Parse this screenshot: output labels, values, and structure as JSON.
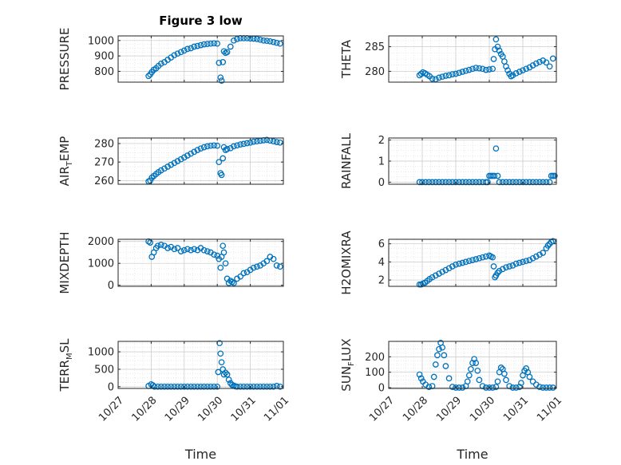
{
  "chart_data": [
    {
      "type": "scatter",
      "title": "Figure 3 low",
      "ylabel": "PRESSURE",
      "xlabel": "",
      "xlim": [
        0,
        5
      ],
      "ylim": [
        730,
        1030
      ],
      "yticks": [
        800,
        900,
        1000
      ],
      "xticklabels": [],
      "grid": true,
      "color": "#0072BD",
      "x": [
        0.92,
        0.97,
        1.02,
        1.08,
        1.15,
        1.22,
        1.3,
        1.4,
        1.5,
        1.6,
        1.7,
        1.8,
        1.9,
        2.0,
        2.1,
        2.2,
        2.3,
        2.4,
        2.5,
        2.6,
        2.7,
        2.8,
        2.9,
        3.0,
        3.05,
        3.1,
        3.13,
        3.17,
        3.2,
        3.25,
        3.3,
        3.4,
        3.5,
        3.6,
        3.7,
        3.8,
        3.9,
        4.0,
        4.1,
        4.2,
        4.3,
        4.4,
        4.5,
        4.6,
        4.7,
        4.8,
        4.9
      ],
      "y": [
        770,
        780,
        795,
        810,
        820,
        835,
        850,
        860,
        875,
        890,
        905,
        915,
        925,
        935,
        945,
        950,
        960,
        965,
        970,
        975,
        978,
        980,
        982,
        980,
        855,
        760,
        740,
        860,
        930,
        920,
        925,
        960,
        1000,
        1010,
        1015,
        1015,
        1015,
        1013,
        1012,
        1010,
        1005,
        1000,
        998,
        995,
        990,
        985,
        980
      ]
    },
    {
      "type": "scatter",
      "title": "",
      "ylabel": "THETA",
      "xlabel": "",
      "xlim": [
        0,
        5
      ],
      "ylim": [
        277.8,
        287.2
      ],
      "yticks": [
        280,
        285
      ],
      "xticklabels": [],
      "grid": true,
      "color": "#0072BD",
      "x": [
        0.92,
        0.97,
        1.02,
        1.08,
        1.15,
        1.22,
        1.3,
        1.4,
        1.5,
        1.6,
        1.7,
        1.8,
        1.9,
        2.0,
        2.1,
        2.2,
        2.3,
        2.4,
        2.5,
        2.6,
        2.7,
        2.8,
        2.9,
        3.0,
        3.1,
        3.13,
        3.17,
        3.2,
        3.25,
        3.3,
        3.35,
        3.4,
        3.45,
        3.5,
        3.55,
        3.6,
        3.65,
        3.7,
        3.8,
        3.9,
        4.0,
        4.1,
        4.2,
        4.3,
        4.4,
        4.5,
        4.6,
        4.7,
        4.8,
        4.9
      ],
      "y": [
        279.2,
        279.5,
        279.8,
        279.6,
        279.3,
        279.0,
        278.5,
        278.4,
        278.7,
        278.9,
        279.1,
        279.2,
        279.4,
        279.5,
        279.7,
        279.9,
        280.1,
        280.3,
        280.5,
        280.7,
        280.6,
        280.5,
        280.3,
        280.4,
        280.5,
        282.5,
        284.5,
        286.5,
        285.0,
        284.2,
        283.5,
        283.0,
        282.0,
        281.0,
        280.2,
        279.5,
        279.0,
        279.2,
        279.6,
        279.9,
        280.2,
        280.5,
        280.8,
        281.2,
        281.6,
        281.9,
        282.2,
        281.8,
        281.0,
        282.6
      ]
    },
    {
      "type": "scatter",
      "title": "",
      "ylabel": "AIR_TEMP",
      "xlabel": "",
      "xlim": [
        0,
        5
      ],
      "ylim": [
        258,
        283
      ],
      "yticks": [
        260,
        270,
        280
      ],
      "xticklabels": [],
      "grid": true,
      "color": "#0072BD",
      "x": [
        0.92,
        0.97,
        1.02,
        1.08,
        1.15,
        1.22,
        1.3,
        1.4,
        1.5,
        1.6,
        1.7,
        1.8,
        1.9,
        2.0,
        2.1,
        2.2,
        2.3,
        2.4,
        2.5,
        2.6,
        2.7,
        2.8,
        2.9,
        3.0,
        3.05,
        3.1,
        3.13,
        3.17,
        3.2,
        3.25,
        3.3,
        3.4,
        3.5,
        3.6,
        3.7,
        3.8,
        3.9,
        4.0,
        4.1,
        4.2,
        4.3,
        4.4,
        4.5,
        4.6,
        4.7,
        4.8,
        4.9
      ],
      "y": [
        259.5,
        260.0,
        261.5,
        262.5,
        263.5,
        264.5,
        265.5,
        266.5,
        267.5,
        268.5,
        269.5,
        270.5,
        271.5,
        272.5,
        273.5,
        274.5,
        275.5,
        276.5,
        277.3,
        278.0,
        278.5,
        278.8,
        279.0,
        278.8,
        270.0,
        264.0,
        263.0,
        272.0,
        278.0,
        276.5,
        277.0,
        277.5,
        278.5,
        279.0,
        279.5,
        279.8,
        280.2,
        280.5,
        281.0,
        281.2,
        281.5,
        281.8,
        282.0,
        281.6,
        281.2,
        280.8,
        280.5
      ]
    },
    {
      "type": "scatter",
      "title": "",
      "ylabel": "RAINFALL",
      "xlabel": "",
      "xlim": [
        0,
        5
      ],
      "ylim": [
        -0.1,
        2.1
      ],
      "yticks": [
        0,
        1,
        2
      ],
      "xticklabels": [],
      "grid": true,
      "color": "#0072BD",
      "x": [
        0.92,
        1.0,
        1.1,
        1.2,
        1.3,
        1.4,
        1.5,
        1.6,
        1.7,
        1.8,
        1.9,
        2.0,
        2.1,
        2.2,
        2.3,
        2.4,
        2.5,
        2.6,
        2.7,
        2.8,
        2.9,
        2.95,
        3.0,
        3.05,
        3.1,
        3.15,
        3.2,
        3.25,
        3.3,
        3.4,
        3.5,
        3.6,
        3.7,
        3.8,
        3.9,
        4.0,
        4.1,
        4.2,
        4.3,
        4.4,
        4.5,
        4.6,
        4.7,
        4.8,
        4.85,
        4.9,
        4.95
      ],
      "y": [
        0,
        0,
        0,
        0,
        0,
        0,
        0,
        0,
        0,
        0,
        0,
        0,
        0,
        0,
        0,
        0,
        0,
        0,
        0,
        0,
        0,
        0,
        0.3,
        0.3,
        0.3,
        0.3,
        1.6,
        0.3,
        0,
        0,
        0,
        0,
        0,
        0,
        0,
        0,
        0,
        0,
        0,
        0,
        0,
        0,
        0,
        0,
        0.3,
        0.3,
        0.3
      ]
    },
    {
      "type": "scatter",
      "title": "",
      "ylabel": "MIXDEPTH",
      "xlabel": "",
      "xlim": [
        0,
        5
      ],
      "ylim": [
        -50,
        2100
      ],
      "yticks": [
        0,
        1000,
        2000
      ],
      "xticklabels": [],
      "grid": true,
      "color": "#0072BD",
      "x": [
        0.92,
        0.97,
        1.02,
        1.08,
        1.15,
        1.2,
        1.3,
        1.4,
        1.5,
        1.6,
        1.7,
        1.8,
        1.9,
        2.0,
        2.1,
        2.2,
        2.3,
        2.4,
        2.5,
        2.6,
        2.7,
        2.8,
        2.9,
        3.0,
        3.05,
        3.1,
        3.13,
        3.17,
        3.2,
        3.25,
        3.3,
        3.35,
        3.4,
        3.45,
        3.5,
        3.6,
        3.7,
        3.8,
        3.9,
        4.0,
        4.1,
        4.2,
        4.3,
        4.4,
        4.5,
        4.6,
        4.7,
        4.8,
        4.9
      ],
      "y": [
        2000,
        1950,
        1300,
        1500,
        1700,
        1800,
        1850,
        1800,
        1700,
        1750,
        1650,
        1700,
        1550,
        1600,
        1650,
        1600,
        1650,
        1600,
        1700,
        1600,
        1550,
        1500,
        1400,
        1350,
        1200,
        800,
        1300,
        1800,
        1500,
        1000,
        300,
        100,
        200,
        150,
        100,
        300,
        400,
        550,
        600,
        700,
        800,
        850,
        900,
        1000,
        1100,
        1300,
        1200,
        900,
        850
      ]
    },
    {
      "type": "scatter",
      "title": "",
      "ylabel": "H2OMIXRA",
      "xlabel": "",
      "xlim": [
        0,
        5
      ],
      "ylim": [
        1.3,
        6.5
      ],
      "yticks": [
        2,
        4,
        6
      ],
      "xticklabels": [],
      "grid": true,
      "color": "#0072BD",
      "x": [
        0.92,
        0.97,
        1.02,
        1.08,
        1.15,
        1.22,
        1.3,
        1.4,
        1.5,
        1.6,
        1.7,
        1.8,
        1.9,
        2.0,
        2.1,
        2.2,
        2.3,
        2.4,
        2.5,
        2.6,
        2.7,
        2.8,
        2.9,
        3.0,
        3.05,
        3.1,
        3.13,
        3.17,
        3.2,
        3.25,
        3.3,
        3.4,
        3.5,
        3.6,
        3.7,
        3.8,
        3.9,
        4.0,
        4.1,
        4.2,
        4.3,
        4.4,
        4.5,
        4.6,
        4.7,
        4.75,
        4.8,
        4.85,
        4.9
      ],
      "y": [
        1.5,
        1.5,
        1.6,
        1.7,
        1.9,
        2.1,
        2.3,
        2.5,
        2.7,
        2.9,
        3.1,
        3.3,
        3.5,
        3.7,
        3.8,
        3.9,
        4.0,
        4.1,
        4.2,
        4.3,
        4.4,
        4.5,
        4.6,
        4.7,
        4.6,
        4.5,
        3.5,
        2.3,
        2.5,
        2.8,
        3.0,
        3.2,
        3.4,
        3.5,
        3.6,
        3.8,
        3.9,
        4.0,
        4.1,
        4.2,
        4.4,
        4.6,
        4.8,
        5.0,
        5.5,
        5.8,
        6.0,
        6.2,
        6.3
      ]
    },
    {
      "type": "scatter",
      "title": "",
      "ylabel": "TERR_MSL",
      "xlabel": "Time",
      "xlim": [
        0,
        5
      ],
      "ylim": [
        -50,
        1300
      ],
      "yticks": [
        0,
        500,
        1000
      ],
      "xticklabels": [
        "10/27",
        "10/28",
        "10/29",
        "10/30",
        "10/31",
        "11/01"
      ],
      "grid": true,
      "color": "#0072BD",
      "x": [
        0.92,
        1.0,
        1.05,
        1.1,
        1.2,
        1.3,
        1.4,
        1.5,
        1.6,
        1.7,
        1.8,
        1.9,
        2.0,
        2.1,
        2.2,
        2.3,
        2.4,
        2.5,
        2.6,
        2.7,
        2.8,
        2.9,
        3.0,
        3.03,
        3.07,
        3.1,
        3.13,
        3.17,
        3.2,
        3.25,
        3.3,
        3.35,
        3.4,
        3.45,
        3.5,
        3.55,
        3.6,
        3.7,
        3.8,
        3.9,
        4.0,
        4.1,
        4.2,
        4.3,
        4.4,
        4.5,
        4.6,
        4.7,
        4.8,
        4.9
      ],
      "y": [
        20,
        70,
        40,
        0,
        0,
        0,
        0,
        0,
        0,
        0,
        0,
        0,
        0,
        0,
        0,
        0,
        0,
        0,
        0,
        0,
        0,
        0,
        0,
        420,
        1250,
        950,
        700,
        500,
        350,
        400,
        350,
        200,
        100,
        50,
        30,
        10,
        0,
        0,
        0,
        0,
        0,
        0,
        0,
        0,
        0,
        0,
        0,
        0,
        20,
        0
      ]
    },
    {
      "type": "scatter",
      "title": "",
      "ylabel": "SUN_FLUX",
      "xlabel": "Time",
      "xlim": [
        0,
        5
      ],
      "ylim": [
        -5,
        300
      ],
      "yticks": [
        0,
        100,
        200
      ],
      "xticklabels": [
        "10/27",
        "10/28",
        "10/29",
        "10/30",
        "10/31",
        "11/01"
      ],
      "grid": true,
      "color": "#0072BD",
      "x": [
        0.92,
        0.97,
        1.02,
        1.1,
        1.2,
        1.3,
        1.35,
        1.4,
        1.45,
        1.5,
        1.55,
        1.6,
        1.65,
        1.7,
        1.8,
        1.9,
        2.0,
        2.1,
        2.2,
        2.3,
        2.35,
        2.4,
        2.45,
        2.5,
        2.55,
        2.6,
        2.65,
        2.7,
        2.8,
        2.9,
        3.0,
        3.1,
        3.2,
        3.25,
        3.3,
        3.35,
        3.4,
        3.45,
        3.5,
        3.6,
        3.7,
        3.8,
        3.9,
        3.95,
        4.0,
        4.05,
        4.1,
        4.15,
        4.2,
        4.3,
        4.4,
        4.5,
        4.6,
        4.7,
        4.8,
        4.9
      ],
      "y": [
        85,
        60,
        40,
        20,
        5,
        10,
        70,
        150,
        210,
        250,
        290,
        260,
        210,
        140,
        60,
        5,
        0,
        0,
        0,
        10,
        40,
        80,
        120,
        160,
        185,
        160,
        110,
        50,
        10,
        0,
        0,
        0,
        5,
        40,
        100,
        130,
        120,
        90,
        50,
        10,
        0,
        0,
        5,
        30,
        80,
        110,
        125,
        100,
        70,
        40,
        20,
        5,
        0,
        0,
        0,
        0
      ]
    }
  ]
}
